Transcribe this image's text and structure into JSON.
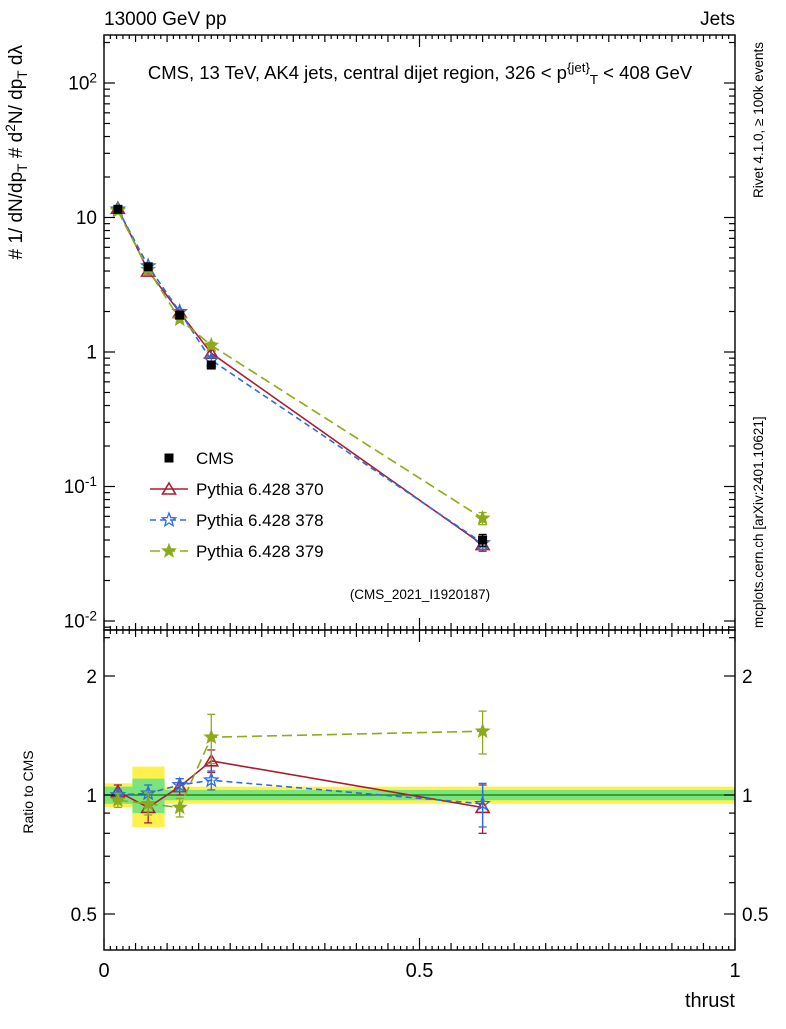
{
  "labels": {
    "header_left": "13000 GeV pp",
    "header_right": "Jets",
    "title_segments": [
      {
        "t": "CMS, 13 TeV, AK4 jets, central dijet region, 326 < p"
      },
      {
        "t": "{jet}",
        "style": "sup"
      },
      {
        "t": "T",
        "style": "sub"
      },
      {
        "t": " < 408 GeV"
      }
    ],
    "yaxis_label_segments": [
      {
        "t": "# 1/ dN/dp"
      },
      {
        "t": "T",
        "style": "sub"
      },
      {
        "t": "   # d"
      },
      {
        "t": "2",
        "style": "sup"
      },
      {
        "t": "N/ dp"
      },
      {
        "t": "T",
        "style": "sub"
      },
      {
        "t": " dλ"
      }
    ],
    "ratio_ylabel": "Ratio to CMS",
    "xlabel": "thrust",
    "watermark": "(CMS_2021_I1920187)",
    "rivet_note": "Rivet 4.1.0, ≥ 100k events",
    "mcplots_note": "mcplots.cern.ch [arXiv:2401.10621]"
  },
  "legend": {
    "entries": [
      "CMS",
      "Pythia 6.428 370",
      "Pythia 6.428 378",
      "Pythia 6.428 379"
    ]
  },
  "chart_data": {
    "type": "line",
    "xlabel": "thrust",
    "x_range": [
      0,
      1
    ],
    "x_ticks": [
      {
        "v": 0,
        "label": "0"
      },
      {
        "v": 0.5,
        "label": "0.5"
      },
      {
        "v": 1,
        "label": "1"
      }
    ],
    "top_panel": {
      "y_scale": "log",
      "y_range": [
        0.0087,
        226
      ],
      "y_ticks": [
        {
          "v": 100,
          "segments": [
            {
              "t": "10"
            },
            {
              "t": "2",
              "style": "sup"
            }
          ]
        },
        {
          "v": 10,
          "segments": [
            {
              "t": "10"
            }
          ]
        },
        {
          "v": 1,
          "segments": [
            {
              "t": "1"
            }
          ]
        },
        {
          "v": 0.1,
          "segments": [
            {
              "t": "10"
            },
            {
              "t": "-1",
              "style": "sup"
            }
          ]
        },
        {
          "v": 0.01,
          "segments": [
            {
              "t": "10"
            },
            {
              "t": "-2",
              "style": "sup"
            }
          ]
        }
      ],
      "series": [
        {
          "name": "CMS",
          "color": "#000000",
          "marker": "square-filled",
          "line": "none",
          "x": [
            0.022,
            0.07,
            0.12,
            0.17,
            0.6
          ],
          "y": [
            11.5,
            4.3,
            1.88,
            0.8,
            0.04
          ],
          "yerr": [
            0.5,
            0.22,
            0.09,
            0.05,
            0.004
          ]
        },
        {
          "name": "Pythia 6.428 370",
          "color": "#a81e34",
          "marker": "triangle-open",
          "line": "solid",
          "x": [
            0.022,
            0.07,
            0.12,
            0.17,
            0.6
          ],
          "y": [
            11.7,
            4.0,
            1.97,
            0.98,
            0.037
          ],
          "yerr": [
            0.4,
            0.2,
            0.08,
            0.05,
            0.004
          ]
        },
        {
          "name": "Pythia 6.428 378",
          "color": "#2e6edb",
          "marker": "star-open",
          "line": "dashed",
          "x": [
            0.022,
            0.07,
            0.12,
            0.17,
            0.6
          ],
          "y": [
            11.5,
            4.35,
            1.99,
            0.87,
            0.038
          ],
          "yerr": [
            0.4,
            0.2,
            0.08,
            0.05,
            0.004
          ]
        },
        {
          "name": "Pythia 6.428 379",
          "color": "#8cab1c",
          "marker": "star-filled",
          "line": "dashed-long",
          "x": [
            0.022,
            0.07,
            0.12,
            0.17,
            0.6
          ],
          "y": [
            11.2,
            4.1,
            1.75,
            1.12,
            0.058
          ],
          "yerr": [
            0.4,
            0.2,
            0.08,
            0.06,
            0.006
          ]
        }
      ]
    },
    "ratio_panel": {
      "ylabel": "Ratio to CMS",
      "y_scale": "log",
      "y_range": [
        0.41,
        2.6
      ],
      "y_ticks": [
        {
          "v": 2,
          "label": "2"
        },
        {
          "v": 1,
          "label": "1"
        },
        {
          "v": 0.5,
          "label": "0.5"
        }
      ],
      "bands": {
        "yellow_color": "#fff04d",
        "green_color": "#7be57b",
        "full_yellow": [
          0.95,
          1.05
        ],
        "full_green": [
          0.97,
          1.03
        ],
        "bin_boxes": [
          {
            "x0": 0.0,
            "x1": 0.045,
            "yellow": [
              0.93,
              1.07
            ],
            "green": [
              0.95,
              1.05
            ]
          },
          {
            "x0": 0.045,
            "x1": 0.096,
            "yellow": [
              0.83,
              1.18
            ],
            "green": [
              0.9,
              1.1
            ]
          }
        ]
      },
      "series": [
        {
          "name": "Pythia 6.428 370",
          "color": "#a81e34",
          "marker": "triangle-open",
          "line": "solid",
          "x": [
            0.022,
            0.07,
            0.12,
            0.17,
            0.6
          ],
          "y": [
            1.02,
            0.93,
            1.05,
            1.22,
            0.93
          ],
          "yerr": [
            0.04,
            0.08,
            0.05,
            0.08,
            0.13
          ]
        },
        {
          "name": "Pythia 6.428 378",
          "color": "#2e6edb",
          "marker": "star-open",
          "line": "dashed",
          "x": [
            0.022,
            0.07,
            0.12,
            0.17,
            0.6
          ],
          "y": [
            1.0,
            1.01,
            1.06,
            1.09,
            0.95
          ],
          "yerr": [
            0.03,
            0.05,
            0.04,
            0.06,
            0.12
          ]
        },
        {
          "name": "Pythia 6.428 379",
          "color": "#8cab1c",
          "marker": "star-filled",
          "line": "dashed-long",
          "x": [
            0.022,
            0.07,
            0.12,
            0.17,
            0.6
          ],
          "y": [
            0.97,
            0.95,
            0.93,
            1.4,
            1.45
          ],
          "yerr": [
            0.04,
            0.06,
            0.05,
            0.2,
            0.18
          ]
        }
      ]
    }
  }
}
